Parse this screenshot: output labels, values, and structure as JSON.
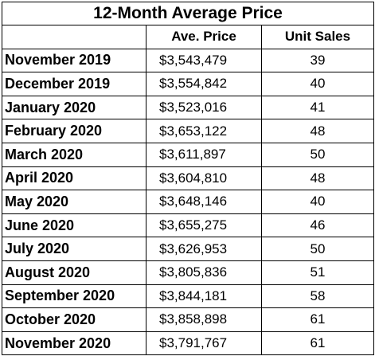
{
  "table": {
    "title": "12-Month Average Price",
    "headers": [
      "",
      "Ave. Price",
      "Unit Sales"
    ],
    "rows": [
      {
        "month": "November 2019",
        "price": "$3,543,479",
        "units": "39"
      },
      {
        "month": "December 2019",
        "price": "$3,554,842",
        "units": "40"
      },
      {
        "month": "January 2020",
        "price": "$3,523,016",
        "units": "41"
      },
      {
        "month": "February 2020",
        "price": "$3,653,122",
        "units": "48"
      },
      {
        "month": "March 2020",
        "price": "$3,611,897",
        "units": "50"
      },
      {
        "month": "April 2020",
        "price": "$3,604,810",
        "units": "48"
      },
      {
        "month": "May 2020",
        "price": "$3,648,146",
        "units": "40"
      },
      {
        "month": "June 2020",
        "price": "$3,655,275",
        "units": "46"
      },
      {
        "month": "July 2020",
        "price": "$3,626,953",
        "units": "50"
      },
      {
        "month": "August 2020",
        "price": "$3,805,836",
        "units": "51"
      },
      {
        "month": "September 2020",
        "price": "$3,844,181",
        "units": "58"
      },
      {
        "month": "October 2020",
        "price": "$3,858,898",
        "units": "61"
      },
      {
        "month": "November 2020",
        "price": "$3,791,767",
        "units": "61"
      }
    ]
  }
}
